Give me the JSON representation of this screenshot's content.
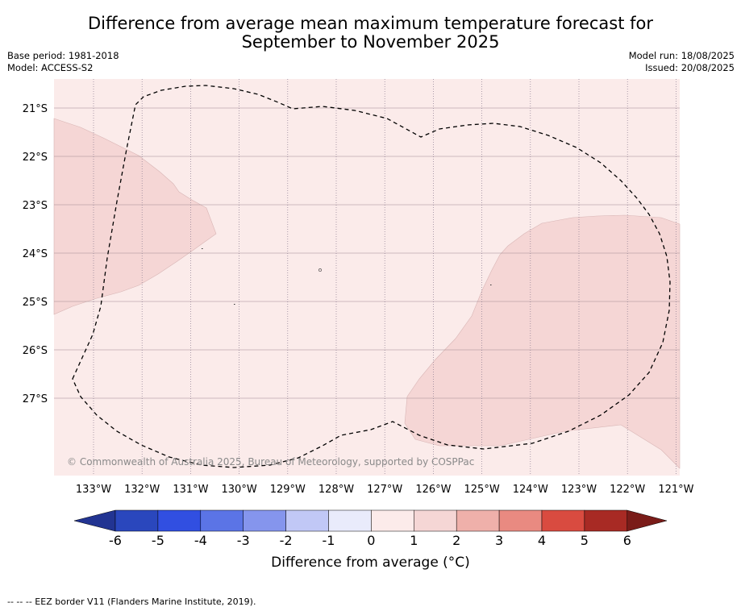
{
  "title_line1": "Difference from average mean maximum temperature forecast for",
  "title_line2": "September to November 2025",
  "base_period": "Base period: 1981-2018",
  "model": "Model: ACCESS-S2",
  "model_run": "Model run: 18/08/2025",
  "issued": "Issued: 20/08/2025",
  "map": {
    "background_color": "#fbebea",
    "anomaly_color": "#f5d6d5",
    "lat_labels": [
      "21°S",
      "22°S",
      "23°S",
      "24°S",
      "25°S",
      "26°S",
      "27°S"
    ],
    "lon_labels": [
      "133°W",
      "132°W",
      "131°W",
      "130°W",
      "129°W",
      "128°W",
      "127°W",
      "126°W",
      "125°W",
      "124°W",
      "123°W",
      "122°W",
      "121°W"
    ],
    "copyright": "© Commonwealth of Australia 2025, Bureau of Meteorology, supported by COSPPac",
    "eez_border": "dashed"
  },
  "colorbar": {
    "label": "Difference from average (°C)",
    "ticks": [
      "-6",
      "-5",
      "-4",
      "-3",
      "-2",
      "-1",
      "0",
      "1",
      "2",
      "3",
      "4",
      "5",
      "6"
    ],
    "colors": [
      "#223492",
      "#2a47bd",
      "#314fe1",
      "#5b74e6",
      "#8595ed",
      "#c1c8f6",
      "#e9ebfb",
      "#fcebea",
      "#f5d6d5",
      "#efb0aa",
      "#e98a81",
      "#d94b40",
      "#a82a24",
      "#7a1c19"
    ]
  },
  "footnote": "--  --  -- EEZ border V11 (Flanders Marine Institute, 2019)."
}
